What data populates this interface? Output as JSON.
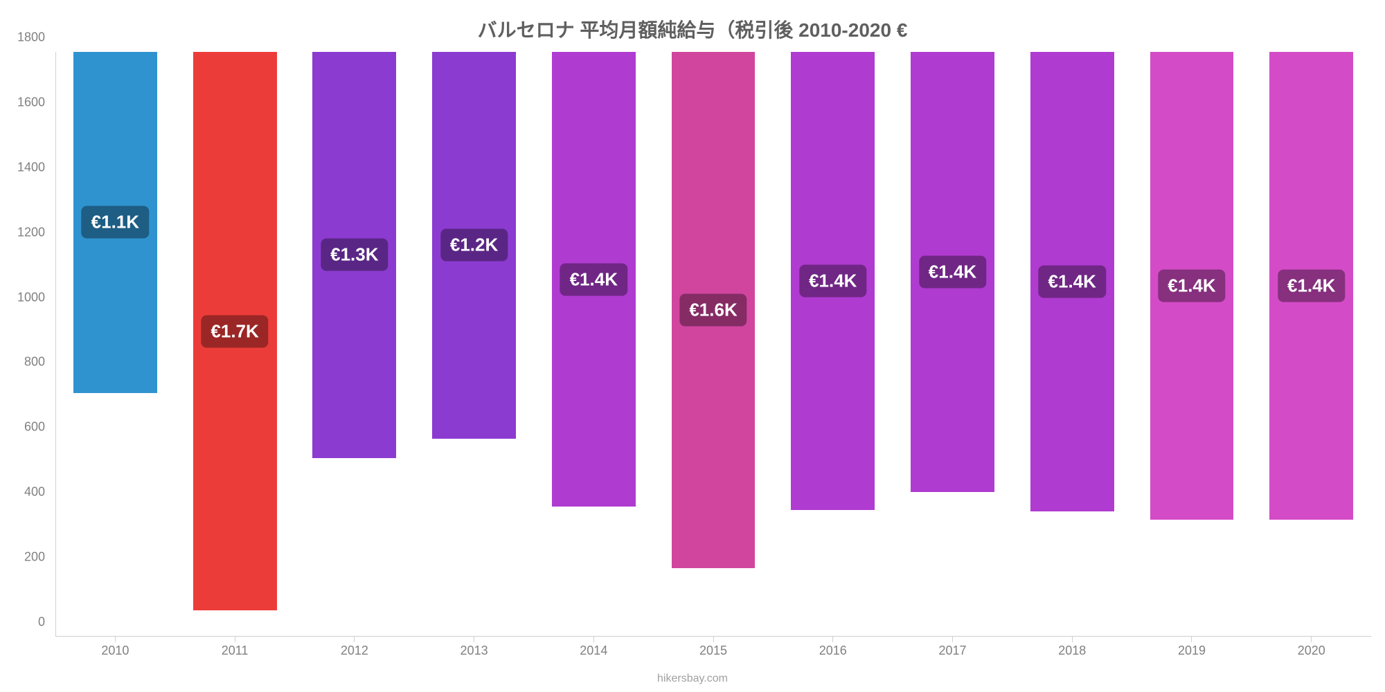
{
  "chart": {
    "type": "bar",
    "title": "バルセロナ 平均月額純給与（税引後 2010-2020 €",
    "title_fontsize": 28,
    "title_color": "#5f5f5f",
    "source": "hikersbay.com",
    "background_color": "#ffffff",
    "axis_font_color": "#808080",
    "axis_fontsize": 18,
    "ylim": [
      0,
      1800
    ],
    "yticks": [
      0,
      200,
      400,
      600,
      800,
      1000,
      1200,
      1400,
      1600,
      1800
    ],
    "categories": [
      "2010",
      "2011",
      "2012",
      "2013",
      "2014",
      "2015",
      "2016",
      "2017",
      "2018",
      "2019",
      "2020"
    ],
    "values": [
      1050,
      1720,
      1250,
      1190,
      1400,
      1590,
      1410,
      1355,
      1415,
      1440,
      1440
    ],
    "bar_colors": [
      "#2f93d0",
      "#ec3c39",
      "#8c3bd1",
      "#8c3bd1",
      "#b03bd1",
      "#d1459f",
      "#b03bd1",
      "#b03bd1",
      "#b03bd1",
      "#d44bc7",
      "#d44bc7"
    ],
    "badge_bg_colors": [
      "#1e5d84",
      "#9a2725",
      "#5a2685",
      "#5a2685",
      "#702685",
      "#852c65",
      "#702685",
      "#702685",
      "#702685",
      "#86307e",
      "#86307e"
    ],
    "value_labels": [
      "€1.1K",
      "€1.7K",
      "€1.3K",
      "€1.2K",
      "€1.4K",
      "€1.6K",
      "€1.4K",
      "€1.4K",
      "€1.4K",
      "€1.4K",
      "€1.4K"
    ],
    "bar_width_ratio": 0.7,
    "label_fontsize": 26,
    "label_color": "#ffffff",
    "label_badge_radius": 8
  }
}
